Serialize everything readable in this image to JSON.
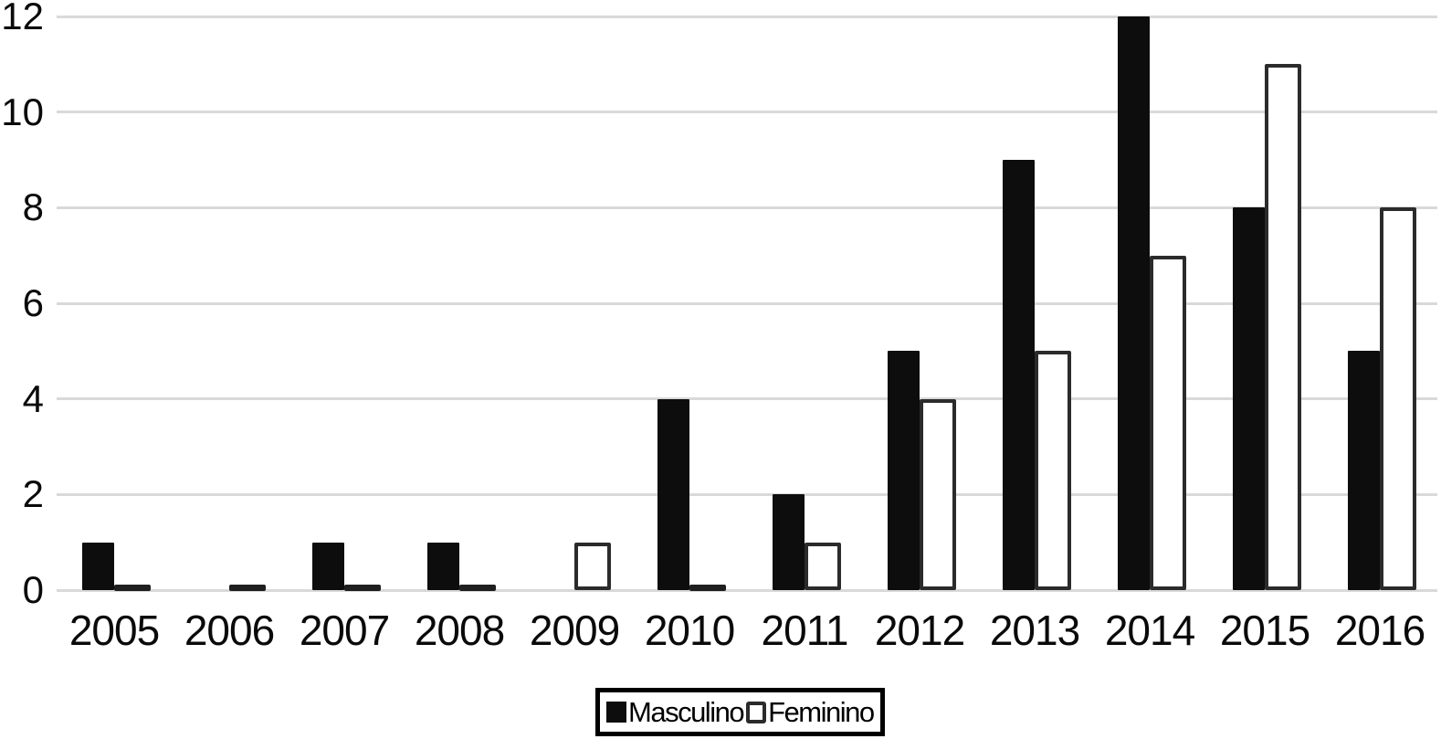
{
  "chart_data": {
    "type": "bar",
    "categories": [
      "2005",
      "2006",
      "2007",
      "2008",
      "2009",
      "2010",
      "2011",
      "2012",
      "2013",
      "2014",
      "2015",
      "2016"
    ],
    "series": [
      {
        "name": "Masculino",
        "color": "#0d0d0d",
        "style": "solid",
        "values": [
          1,
          0,
          1,
          1,
          0,
          4,
          2,
          5,
          9,
          12,
          8,
          5
        ]
      },
      {
        "name": "Feminino",
        "color": "#ffffff",
        "style": "outlined",
        "values": [
          0,
          0,
          0,
          0,
          1,
          0,
          1,
          4,
          5,
          7,
          11,
          8
        ]
      }
    ],
    "title": "",
    "xlabel": "",
    "ylabel": "",
    "ylim": [
      0,
      12
    ],
    "yticks": [
      0,
      2,
      4,
      6,
      8,
      10,
      12
    ],
    "grid": true,
    "gridline_color": "#d9d9d9",
    "bar_outline_color": "#2b2b2b",
    "legend_position": "bottom-center",
    "legend_border_color": "#000000"
  }
}
